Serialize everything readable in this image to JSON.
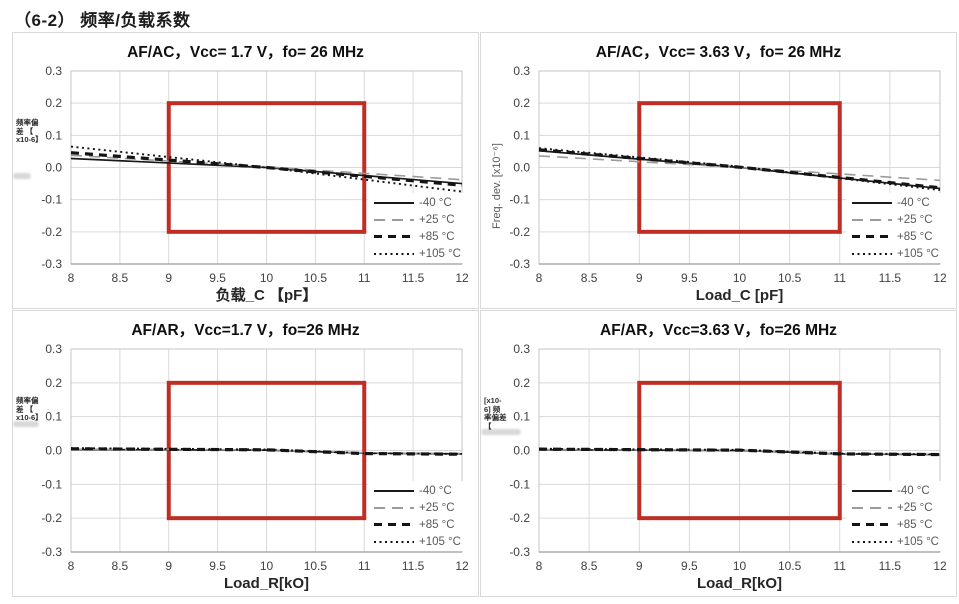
{
  "page_title": "（6-2） 频率/负载系数",
  "colors": {
    "grid": "#d9d9d9",
    "plot_border": "#c4c4c4",
    "axis": "#9a9a9a",
    "tick_text": "#404040",
    "title_text": "#0f0f0f",
    "legend_text": "#595959",
    "spec_box_red": "#BF2E24"
  },
  "chart_data": {
    "type": "line",
    "grid": true,
    "legend_position": "inside lower right",
    "x_range": [
      8,
      12
    ],
    "x_step": 0.5,
    "y_range": [
      -0.3,
      0.3
    ],
    "y_step": 0.1,
    "spec_box": {
      "x": [
        9,
        11
      ],
      "y": [
        -0.2,
        0.2
      ],
      "color": "#BF2E24"
    },
    "series_styles": [
      {
        "label": "-40 °C",
        "color": "#1a1a1a",
        "width": 1.7,
        "dash": ""
      },
      {
        "label": "+25 °C",
        "color": "#9b9b9b",
        "width": 1.6,
        "dash": "11,7"
      },
      {
        "label": "+85 °C",
        "color": "#141414",
        "width": 3.2,
        "dash": "8,6"
      },
      {
        "label": "+105 °C",
        "color": "#141414",
        "width": 1.9,
        "dash": "2,3.5"
      }
    ],
    "charts": [
      {
        "title": "AF/AC，Vcc= 1.7 V，fo= 26 MHz",
        "xlabel": "负载_C 【pF】",
        "ylabel": {
          "style": "stacked",
          "lines": [
            "频率偏",
            "差 【",
            "x10-6】"
          ]
        },
        "series": [
          {
            "name": "-40 °C",
            "points": [
              [
                8,
                0.028
              ],
              [
                10,
                0.0
              ],
              [
                12,
                -0.05
              ]
            ]
          },
          {
            "name": "+25 °C",
            "points": [
              [
                8,
                0.038
              ],
              [
                10,
                0.002
              ],
              [
                12,
                -0.038
              ]
            ]
          },
          {
            "name": "+85 °C",
            "points": [
              [
                8,
                0.046
              ],
              [
                10,
                0.0
              ],
              [
                12,
                -0.055
              ]
            ]
          },
          {
            "name": "+105 °C",
            "points": [
              [
                8,
                0.065
              ],
              [
                10,
                0.0
              ],
              [
                12,
                -0.075
              ]
            ]
          }
        ]
      },
      {
        "title": "AF/AC，Vcc= 3.63 V，fo= 26 MHz",
        "xlabel": "Load_C [pF]",
        "ylabel": {
          "style": "rotated",
          "text": "Freq. dev. [x10⁻⁶]"
        },
        "series": [
          {
            "name": "-40 °C",
            "points": [
              [
                8,
                0.052
              ],
              [
                10,
                0.0
              ],
              [
                12,
                -0.065
              ]
            ]
          },
          {
            "name": "+25 °C",
            "points": [
              [
                8,
                0.036
              ],
              [
                10,
                0.0
              ],
              [
                12,
                -0.04
              ]
            ]
          },
          {
            "name": "+85 °C",
            "points": [
              [
                8,
                0.055
              ],
              [
                10,
                0.001
              ],
              [
                12,
                -0.063
              ]
            ]
          },
          {
            "name": "+105 °C",
            "points": [
              [
                8,
                0.06
              ],
              [
                10,
                0.003
              ],
              [
                12,
                -0.07
              ]
            ]
          }
        ]
      },
      {
        "title": "AF/AR，Vcc=1.7 V，fo=26 MHz",
        "xlabel": "Load_R[kO]",
        "ylabel": {
          "style": "stacked",
          "lines": [
            "频率偏",
            "差 【",
            "x10-6】"
          ]
        },
        "series": [
          {
            "name": "-40 °C",
            "points": [
              [
                8,
                0.003
              ],
              [
                10,
                0.001
              ],
              [
                11,
                -0.008
              ],
              [
                12,
                -0.01
              ]
            ]
          },
          {
            "name": "+25 °C",
            "points": [
              [
                8,
                0.004
              ],
              [
                10,
                0.002
              ],
              [
                11,
                -0.007
              ],
              [
                12,
                -0.009
              ]
            ]
          },
          {
            "name": "+85 °C",
            "points": [
              [
                8,
                0.005
              ],
              [
                10,
                0.002
              ],
              [
                11,
                -0.009
              ],
              [
                12,
                -0.011
              ]
            ]
          },
          {
            "name": "+105 °C",
            "points": [
              [
                8,
                0.007
              ],
              [
                10,
                0.003
              ],
              [
                11,
                -0.008
              ],
              [
                12,
                -0.01
              ]
            ]
          }
        ]
      },
      {
        "title": "AF/AR，Vcc=3.63 V，fo=26 MHz",
        "xlabel": "Load_R[kO]",
        "ylabel": {
          "style": "stacked",
          "lines": [
            "[x10-",
            "6] 频",
            "率偏差",
            "【"
          ]
        },
        "series": [
          {
            "name": "-40 °C",
            "points": [
              [
                8,
                0.002
              ],
              [
                10,
                0.0
              ],
              [
                11,
                -0.01
              ],
              [
                12,
                -0.012
              ]
            ]
          },
          {
            "name": "+25 °C",
            "points": [
              [
                8,
                0.003
              ],
              [
                10,
                0.001
              ],
              [
                11,
                -0.009
              ],
              [
                12,
                -0.011
              ]
            ]
          },
          {
            "name": "+85 °C",
            "points": [
              [
                8,
                0.004
              ],
              [
                10,
                0.001
              ],
              [
                11,
                -0.01
              ],
              [
                12,
                -0.012
              ]
            ]
          },
          {
            "name": "+105 °C",
            "points": [
              [
                8,
                0.005
              ],
              [
                10,
                0.002
              ],
              [
                11,
                -0.009
              ],
              [
                12,
                -0.011
              ]
            ]
          }
        ]
      }
    ]
  }
}
